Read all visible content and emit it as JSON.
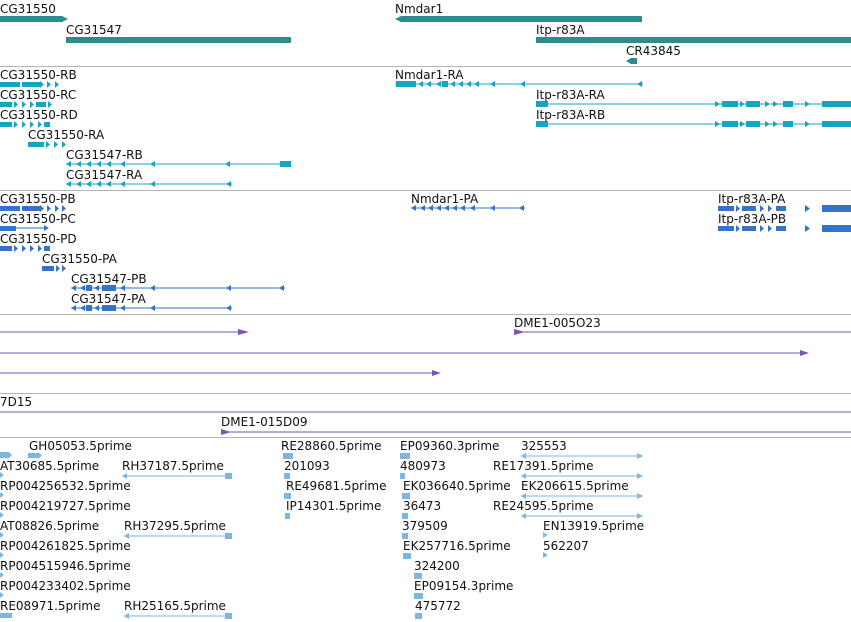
{
  "colors": {
    "gene": "#2f8a8a",
    "rna": "#17a3c4",
    "protein": "#3572c9",
    "clone": "#7a55b8",
    "est": "#7db6e0",
    "divider": "#b4b4b4"
  },
  "genes": [
    "CG31550",
    "CG31547",
    "Nmdar1",
    "Itp-r83A",
    "CR43845"
  ],
  "transcripts": [
    "CG31550-RB",
    "CG31550-RC",
    "CG31550-RD",
    "CG31550-RA",
    "CG31547-RB",
    "CG31547-RA",
    "Nmdar1-RA",
    "Itp-r83A-RA",
    "Itp-r83A-RB"
  ],
  "proteins": [
    "CG31550-PB",
    "CG31550-PC",
    "CG31550-PD",
    "CG31550-PA",
    "CG31547-PB",
    "CG31547-PA",
    "Nmdar1-PA",
    "Itp-r83A-PA",
    "Itp-r83A-PB"
  ],
  "clones_a": [
    "DME1-005O23"
  ],
  "clones_b": [
    "7D15",
    "DME1-015D09"
  ],
  "ests": [
    "GH05053.5prime",
    "AT30685.5prime",
    "RH37187.5prime",
    "RP004256532.5prime",
    "RP004219727.5prime",
    "AT08826.5prime",
    "RH37295.5prime",
    "RP004261825.5prime",
    "RP004515946.5prime",
    "RP004233402.5prime",
    "RE08971.5prime",
    "RH25165.5prime",
    "RE28860.5prime",
    "201093",
    "RE49681.5prime",
    "IP14301.5prime",
    "EP09360.3prime",
    "480973",
    "EK036640.5prime",
    "36473",
    "379509",
    "EK257716.5prime",
    "324200",
    "EP09154.3prime",
    "475772",
    "325553",
    "RE17391.5prime",
    "EK206615.5prime",
    "RE24595.5prime",
    "EN13919.5prime",
    "562207"
  ]
}
